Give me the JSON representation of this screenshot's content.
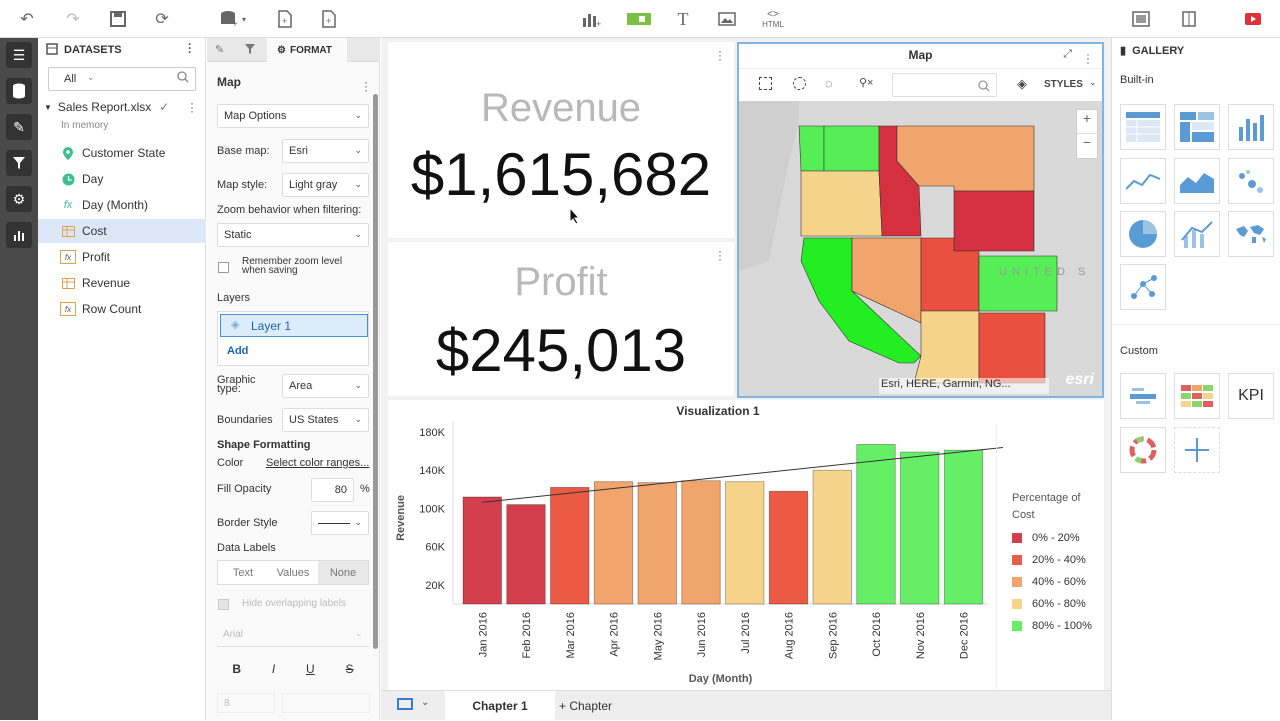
{
  "toolbar": {
    "icons": [
      "undo-icon",
      "redo-icon",
      "save-icon",
      "refresh-icon",
      "add-data-icon",
      "new-sheet-icon",
      "new-page-icon",
      "chart-insert-icon",
      "image-insert-icon",
      "text-insert-icon",
      "picture-insert-icon",
      "html-insert-icon",
      "present-icon",
      "canvas-icon",
      "play-icon"
    ],
    "html_label": "HTML"
  },
  "datasets": {
    "header": "DATASETS",
    "filter": "All",
    "source": "Sales Report.xlsx",
    "source_sub": "In memory",
    "items": [
      {
        "label": "Customer State",
        "icon": "location-icon"
      },
      {
        "label": "Day",
        "icon": "clock-icon"
      },
      {
        "label": "Day (Month)",
        "icon": "calc-date-icon"
      },
      {
        "label": "Cost",
        "icon": "measure-icon"
      },
      {
        "label": "Profit",
        "icon": "fx-icon"
      },
      {
        "label": "Revenue",
        "icon": "measure-icon"
      },
      {
        "label": "Row Count",
        "icon": "fx-icon"
      }
    ]
  },
  "format": {
    "tab": "FORMAT",
    "section_title": "Map",
    "map_options": "Map Options",
    "base_map_label": "Base map:",
    "base_map": "Esri",
    "map_style_label": "Map style:",
    "map_style": "Light gray",
    "zoom_label": "Zoom behavior when filtering:",
    "zoom": "Static",
    "remember_zoom": "Remember zoom level when saving",
    "layers_label": "Layers",
    "layer_1": "Layer 1",
    "add": "Add",
    "graphic_type_label": "Graphic type:",
    "graphic_type": "Area",
    "boundaries_label": "Boundaries",
    "boundaries": "US States",
    "shape_formatting": "Shape Formatting",
    "color_label": "Color",
    "color_link": "Select color ranges...",
    "fill_opacity_label": "Fill Opacity",
    "fill_opacity": "80",
    "percent": "%",
    "border_style_label": "Border Style",
    "data_labels_label": "Data Labels",
    "data_labels_tabs": [
      "Text",
      "Values",
      "None"
    ],
    "hide_overlapping": "Hide overlapping labels",
    "font": "Arial",
    "font_size": "8",
    "bold": "B",
    "italic": "I",
    "underline": "U",
    "strike": "S"
  },
  "kpis": [
    {
      "title": "Revenue",
      "value": "$1,615,682"
    },
    {
      "title": "Profit",
      "value": "$245,013"
    }
  ],
  "map": {
    "title": "Map",
    "styles": "STYLES",
    "attribution": "Esri, HERE, Garmin, NG...",
    "logo": "esri",
    "watermark": "UNITED S",
    "zoom_in": "+",
    "zoom_out": "−"
  },
  "viz": {
    "title": "Visualization 1"
  },
  "chart_data": {
    "type": "bar",
    "categories": [
      "Jan 2016",
      "Feb 2016",
      "Mar 2016",
      "Apr 2016",
      "May 2016",
      "Jun 2016",
      "Jul 2016",
      "Aug 2016",
      "Sep 2016",
      "Oct 2016",
      "Nov 2016",
      "Dec 2016"
    ],
    "values": [
      112000,
      104000,
      122000,
      128000,
      127000,
      129000,
      128000,
      118000,
      140000,
      167000,
      159000,
      161000
    ],
    "colors": [
      "#d43f4e",
      "#d43f4e",
      "#ea5a45",
      "#f1a56d",
      "#f1a56d",
      "#f1a56d",
      "#f6d48c",
      "#ea5a45",
      "#f6d48c",
      "#66ee66",
      "#66ee66",
      "#66ee66"
    ],
    "ylabel": "Revenue",
    "xlabel": "Day (Month)",
    "ylim": [
      0,
      180000
    ],
    "yticks": [
      20000,
      60000,
      100000,
      140000,
      180000
    ],
    "ytick_labels": [
      "20K",
      "60K",
      "100K",
      "140K",
      "180K"
    ],
    "trendline": true,
    "legend_title": "Percentage of Cost",
    "legend": [
      {
        "label": "0% - 20%",
        "color": "#d43f4e"
      },
      {
        "label": "20% - 40%",
        "color": "#ea5a45"
      },
      {
        "label": "40% - 60%",
        "color": "#f1a56d"
      },
      {
        "label": "60% - 80%",
        "color": "#f6d48c"
      },
      {
        "label": "80% - 100%",
        "color": "#66ee66"
      }
    ]
  },
  "chapters": {
    "active": "Chapter 1",
    "add": "+ Chapter"
  },
  "gallery": {
    "header": "GALLERY",
    "builtin": "Built-in",
    "custom": "Custom",
    "kpi": "KPI"
  }
}
